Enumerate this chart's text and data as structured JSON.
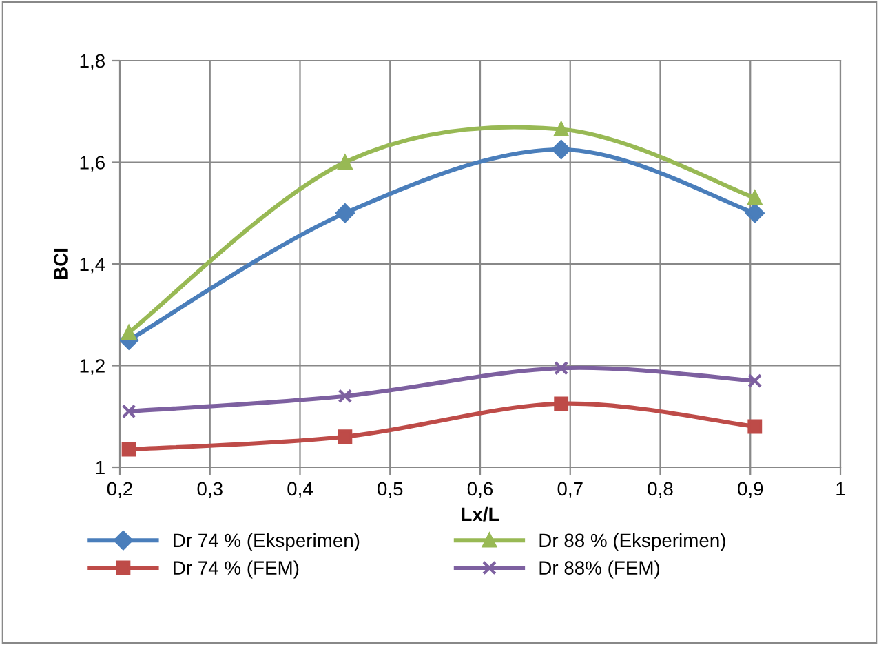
{
  "chart_data": {
    "type": "line",
    "xlabel": "Lx/L",
    "ylabel": "BCI",
    "x": [
      0.21,
      0.45,
      0.69,
      0.905
    ],
    "series": [
      {
        "name": "Dr 74 % (Eksperimen)",
        "color": "#4a7ebb",
        "marker": "diamond",
        "values": [
          1.25,
          1.5,
          1.625,
          1.5
        ]
      },
      {
        "name": "Dr 74 % (FEM)",
        "color": "#be4b48",
        "marker": "square",
        "values": [
          1.035,
          1.06,
          1.125,
          1.08
        ]
      },
      {
        "name": "Dr 88 % (Eksperimen)",
        "color": "#98b954",
        "marker": "triangle",
        "values": [
          1.265,
          1.6,
          1.665,
          1.53
        ]
      },
      {
        "name": "Dr 88% (FEM)",
        "color": "#7d60a0",
        "marker": "cross",
        "values": [
          1.11,
          1.14,
          1.195,
          1.17
        ]
      }
    ],
    "xlim": [
      0.2,
      1
    ],
    "xticks": [
      {
        "value": 0.2,
        "label": "0,2"
      },
      {
        "value": 0.3,
        "label": "0,3"
      },
      {
        "value": 0.4,
        "label": "0,4"
      },
      {
        "value": 0.5,
        "label": "0,5"
      },
      {
        "value": 0.6,
        "label": "0,6"
      },
      {
        "value": 0.7,
        "label": "0,7"
      },
      {
        "value": 0.8,
        "label": "0,8"
      },
      {
        "value": 0.9,
        "label": "0,9"
      },
      1
    ],
    "ylim": [
      1,
      1.8
    ],
    "yticks": [
      1,
      {
        "value": 1.2,
        "label": "1,2"
      },
      {
        "value": 1.4,
        "label": "1,4"
      },
      {
        "value": 1.6,
        "label": "1,6"
      },
      {
        "value": 1.8,
        "label": "1,8"
      }
    ],
    "grid": true,
    "legend": "bottom",
    "line_style": "solid"
  }
}
